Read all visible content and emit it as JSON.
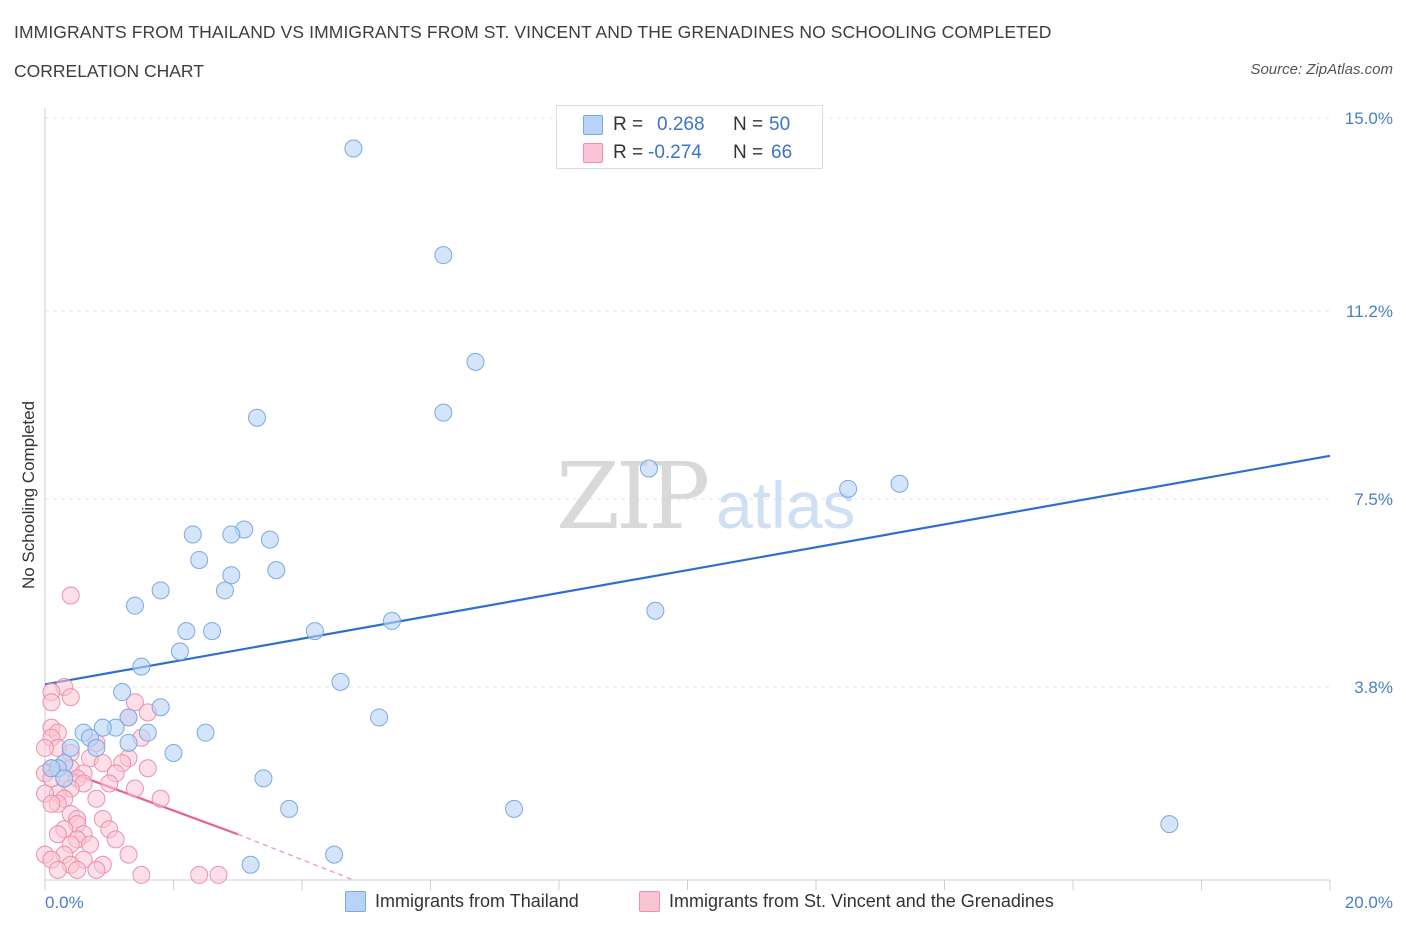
{
  "header": {
    "title": "IMMIGRANTS FROM THAILAND VS IMMIGRANTS FROM ST. VINCENT AND THE GRENADINES NO SCHOOLING COMPLETED",
    "subtitle": "CORRELATION CHART",
    "source": "Source: ZipAtlas.com"
  },
  "watermark": {
    "zip": "ZIP",
    "atlas": "atlas"
  },
  "legend_top": [
    {
      "r_label": "R =",
      "r_value": "0.268",
      "n_label": "N =",
      "n_value": "50"
    },
    {
      "r_label": "R =",
      "r_value": "-0.274",
      "n_label": "N =",
      "n_value": "66"
    }
  ],
  "legend_bottom": [
    {
      "label": "Immigrants from Thailand"
    },
    {
      "label": "Immigrants from St. Vincent and the Grenadines"
    }
  ],
  "colors": {
    "blue_fill": "#b8d3f5",
    "blue_stroke": "#7aa8e6",
    "blue_line": "#2f6fcc",
    "pink_fill": "#f9c4d4",
    "pink_stroke": "#ee8fae",
    "pink_line": "#e8608d",
    "axis_text": "#4a7ec9",
    "grid": "#e3e3e3"
  },
  "chart_data": {
    "type": "scatter",
    "title": "IMMIGRANTS FROM THAILAND VS IMMIGRANTS FROM ST. VINCENT AND THE GRENADINES NO SCHOOLING COMPLETED",
    "xlabel": "",
    "ylabel": "No Schooling Completed",
    "xlim": [
      0,
      20
    ],
    "ylim": [
      0,
      15
    ],
    "x_tick_labels": [
      "0.0%",
      "20.0%"
    ],
    "y_ticks": [
      3.8,
      7.5,
      11.2,
      15.0
    ],
    "y_tick_labels": [
      "3.8%",
      "7.5%",
      "11.2%",
      "15.0%"
    ],
    "grid": "horizontal dashed",
    "legend": "top-center",
    "series": [
      {
        "name": "Immigrants from Thailand",
        "color": "blue",
        "trendline": {
          "x": [
            0,
            20
          ],
          "y": [
            3.85,
            8.35
          ]
        },
        "points": [
          [
            4.8,
            14.4
          ],
          [
            6.2,
            12.3
          ],
          [
            6.7,
            10.2
          ],
          [
            6.2,
            9.2
          ],
          [
            3.3,
            9.1
          ],
          [
            9.4,
            8.1
          ],
          [
            12.5,
            7.7
          ],
          [
            13.3,
            7.8
          ],
          [
            3.1,
            6.9
          ],
          [
            2.9,
            6.8
          ],
          [
            2.3,
            6.8
          ],
          [
            3.5,
            6.7
          ],
          [
            2.4,
            6.3
          ],
          [
            2.9,
            6.0
          ],
          [
            3.6,
            6.1
          ],
          [
            1.8,
            5.7
          ],
          [
            2.8,
            5.7
          ],
          [
            1.4,
            5.4
          ],
          [
            9.5,
            5.3
          ],
          [
            5.4,
            5.1
          ],
          [
            4.2,
            4.9
          ],
          [
            2.2,
            4.9
          ],
          [
            2.6,
            4.9
          ],
          [
            2.1,
            4.5
          ],
          [
            1.5,
            4.2
          ],
          [
            4.6,
            3.9
          ],
          [
            1.2,
            3.7
          ],
          [
            1.8,
            3.4
          ],
          [
            1.3,
            3.2
          ],
          [
            5.2,
            3.2
          ],
          [
            1.1,
            3.0
          ],
          [
            0.9,
            3.0
          ],
          [
            1.6,
            2.9
          ],
          [
            2.5,
            2.9
          ],
          [
            0.6,
            2.9
          ],
          [
            0.7,
            2.8
          ],
          [
            0.4,
            2.6
          ],
          [
            0.8,
            2.6
          ],
          [
            1.3,
            2.7
          ],
          [
            2.0,
            2.5
          ],
          [
            0.3,
            2.3
          ],
          [
            0.2,
            2.2
          ],
          [
            0.1,
            2.2
          ],
          [
            0.3,
            2.0
          ],
          [
            3.4,
            2.0
          ],
          [
            3.8,
            1.4
          ],
          [
            7.3,
            1.4
          ],
          [
            17.5,
            1.1
          ],
          [
            4.5,
            0.5
          ],
          [
            3.2,
            0.3
          ]
        ]
      },
      {
        "name": "Immigrants from St. Vincent and the Grenadines",
        "color": "pink",
        "trendline": {
          "x": [
            0,
            3.0
          ],
          "y": [
            2.3,
            0.9
          ],
          "dashed_extension_to": [
            4.8,
            0.0
          ]
        },
        "points": [
          [
            0.4,
            5.6
          ],
          [
            0.3,
            3.8
          ],
          [
            0.1,
            3.7
          ],
          [
            0.4,
            3.6
          ],
          [
            0.1,
            3.5
          ],
          [
            1.4,
            3.5
          ],
          [
            1.6,
            3.3
          ],
          [
            1.3,
            3.2
          ],
          [
            0.1,
            3.0
          ],
          [
            0.2,
            2.9
          ],
          [
            0.1,
            2.8
          ],
          [
            0.8,
            2.7
          ],
          [
            1.5,
            2.8
          ],
          [
            0.2,
            2.6
          ],
          [
            0.0,
            2.6
          ],
          [
            0.4,
            2.5
          ],
          [
            0.7,
            2.4
          ],
          [
            1.3,
            2.4
          ],
          [
            0.3,
            2.3
          ],
          [
            0.9,
            2.3
          ],
          [
            1.2,
            2.3
          ],
          [
            1.6,
            2.2
          ],
          [
            0.1,
            2.2
          ],
          [
            0.4,
            2.2
          ],
          [
            0.6,
            2.1
          ],
          [
            1.1,
            2.1
          ],
          [
            0.0,
            2.1
          ],
          [
            0.3,
            2.0
          ],
          [
            0.5,
            2.0
          ],
          [
            0.1,
            2.0
          ],
          [
            0.6,
            1.9
          ],
          [
            1.0,
            1.9
          ],
          [
            0.4,
            1.8
          ],
          [
            1.4,
            1.8
          ],
          [
            0.2,
            1.7
          ],
          [
            0.0,
            1.7
          ],
          [
            0.3,
            1.6
          ],
          [
            0.8,
            1.6
          ],
          [
            1.8,
            1.6
          ],
          [
            0.2,
            1.5
          ],
          [
            0.1,
            1.5
          ],
          [
            0.4,
            1.3
          ],
          [
            0.5,
            1.2
          ],
          [
            0.9,
            1.2
          ],
          [
            0.5,
            1.1
          ],
          [
            0.3,
            1.0
          ],
          [
            1.0,
            1.0
          ],
          [
            0.6,
            0.9
          ],
          [
            0.2,
            0.9
          ],
          [
            0.5,
            0.8
          ],
          [
            1.1,
            0.8
          ],
          [
            0.7,
            0.7
          ],
          [
            0.4,
            0.7
          ],
          [
            0.3,
            0.5
          ],
          [
            1.3,
            0.5
          ],
          [
            0.0,
            0.5
          ],
          [
            0.1,
            0.4
          ],
          [
            0.6,
            0.4
          ],
          [
            0.4,
            0.3
          ],
          [
            0.9,
            0.3
          ],
          [
            0.2,
            0.2
          ],
          [
            2.4,
            0.1
          ],
          [
            2.7,
            0.1
          ],
          [
            0.5,
            0.2
          ],
          [
            0.8,
            0.2
          ],
          [
            1.5,
            0.1
          ]
        ]
      }
    ]
  }
}
